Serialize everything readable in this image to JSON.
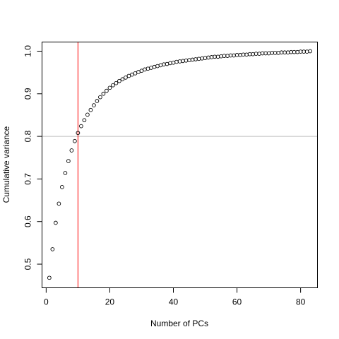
{
  "chart_data": {
    "type": "scatter",
    "title": "",
    "xlabel": "Number of PCs",
    "ylabel": "Cumulative variance",
    "xlim": [
      -1.3,
      85.3
    ],
    "ylim": [
      0.4445,
      1.0215
    ],
    "x_ticks": [
      0,
      20,
      40,
      60,
      80
    ],
    "x_tick_labels": [
      "0",
      "20",
      "40",
      "60",
      "80"
    ],
    "y_ticks": [
      0.5,
      0.6,
      0.7,
      0.8,
      0.9,
      1.0
    ],
    "y_tick_labels": [
      "0.5",
      "0.6",
      "0.7",
      "0.8",
      "0.9",
      "1.0"
    ],
    "grid": false,
    "legend": "none",
    "marker": "open-circle",
    "marker_color": "#000000",
    "reference_lines": {
      "vertical": {
        "x": 10,
        "color": "#ff0000"
      },
      "horizontal": {
        "y": 0.8,
        "color": "#bebebe"
      }
    },
    "series": [
      {
        "x": [
          1,
          2,
          3,
          4,
          5,
          6,
          7,
          8,
          9,
          10,
          11,
          12,
          13,
          14,
          15,
          16,
          17,
          18,
          19,
          20,
          21,
          22,
          23,
          24,
          25,
          26,
          27,
          28,
          29,
          30,
          31,
          32,
          33,
          34,
          35,
          36,
          37,
          38,
          39,
          40,
          41,
          42,
          43,
          44,
          45,
          46,
          47,
          48,
          49,
          50,
          51,
          52,
          53,
          54,
          55,
          56,
          57,
          58,
          59,
          60,
          61,
          62,
          63,
          64,
          65,
          66,
          67,
          68,
          69,
          70,
          71,
          72,
          73,
          74,
          75,
          76,
          77,
          78,
          79,
          80,
          81,
          82,
          83
        ],
        "values": [
          0.468,
          0.535,
          0.597,
          0.642,
          0.681,
          0.714,
          0.742,
          0.767,
          0.789,
          0.808,
          0.824,
          0.838,
          0.851,
          0.862,
          0.873,
          0.883,
          0.892,
          0.9,
          0.907,
          0.914,
          0.92,
          0.925,
          0.93,
          0.934,
          0.938,
          0.942,
          0.945,
          0.948,
          0.951,
          0.954,
          0.957,
          0.959,
          0.961,
          0.963,
          0.965,
          0.967,
          0.969,
          0.97,
          0.972,
          0.973,
          0.975,
          0.976,
          0.977,
          0.978,
          0.979,
          0.98,
          0.981,
          0.982,
          0.983,
          0.984,
          0.985,
          0.986,
          0.987,
          0.987,
          0.988,
          0.989,
          0.989,
          0.99,
          0.99,
          0.991,
          0.991,
          0.992,
          0.992,
          0.993,
          0.993,
          0.994,
          0.994,
          0.995,
          0.995,
          0.995,
          0.996,
          0.996,
          0.996,
          0.997,
          0.997,
          0.997,
          0.998,
          0.998,
          0.998,
          0.999,
          0.999,
          0.999,
          1.0
        ]
      }
    ]
  }
}
